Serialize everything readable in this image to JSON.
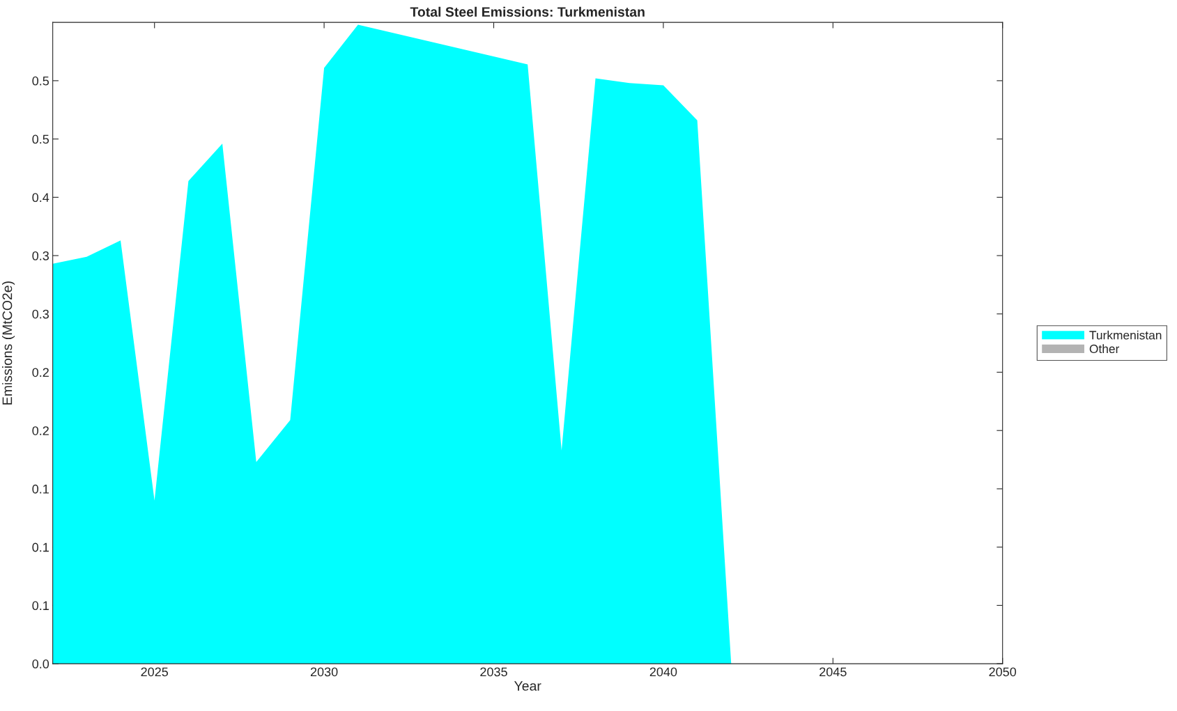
{
  "chart_data": {
    "type": "area",
    "title": "Total Steel Emissions: Turkmenistan",
    "xlabel": "Year",
    "ylabel": "Emissions (MtCO2e)",
    "x": [
      2022,
      2023,
      2024,
      2025,
      2026,
      2027,
      2028,
      2029,
      2030,
      2031,
      2036,
      2037,
      2038,
      2039,
      2040,
      2041,
      2042,
      2050
    ],
    "series": [
      {
        "name": "Turkmenistan",
        "color": "#00ffff",
        "values": [
          0.343,
          0.349,
          0.363,
          0.14,
          0.414,
          0.446,
          0.173,
          0.209,
          0.511,
          0.548,
          0.514,
          0.183,
          0.502,
          0.498,
          0.496,
          0.466,
          0,
          0
        ]
      },
      {
        "name": "Other",
        "color": "#b3b3b3",
        "values": [
          null,
          null,
          null,
          null,
          null,
          null,
          null,
          null,
          null,
          null,
          null,
          null,
          null,
          null,
          null,
          null,
          null,
          null
        ]
      }
    ],
    "xlim": [
      2022,
      2050
    ],
    "xticks": [
      2025,
      2030,
      2035,
      2040,
      2045,
      2050
    ],
    "ylim": [
      0,
      0.55
    ],
    "yticks": [
      {
        "value": 0,
        "label": "0.0"
      },
      {
        "value": 0.05,
        "label": "0.1"
      },
      {
        "value": 0.1,
        "label": "0.1"
      },
      {
        "value": 0.15,
        "label": "0.1"
      },
      {
        "value": 0.2,
        "label": "0.2"
      },
      {
        "value": 0.25,
        "label": "0.2"
      },
      {
        "value": 0.3,
        "label": "0.3"
      },
      {
        "value": 0.35,
        "label": "0.3"
      },
      {
        "value": 0.4,
        "label": "0.4"
      },
      {
        "value": 0.45,
        "label": "0.5"
      },
      {
        "value": 0.5,
        "label": "0.5"
      }
    ],
    "grid": false,
    "legend": "right"
  }
}
